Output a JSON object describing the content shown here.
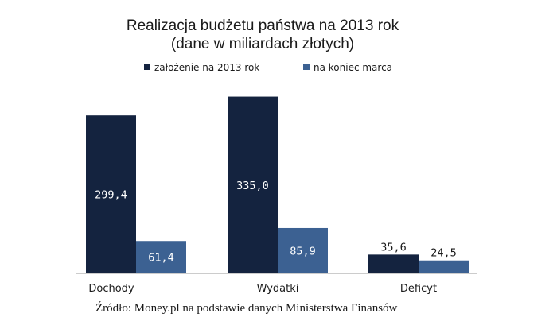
{
  "chart_data": {
    "type": "bar",
    "title": "Realizacja budżetu państwa na 2013 rok",
    "subtitle": "(dane w miliardach złotych)",
    "categories": [
      "Dochody",
      "Wydatki",
      "Deficyt"
    ],
    "series": [
      {
        "name": "założenie na 2013 rok",
        "color": "#14233f",
        "values": [
          299.4,
          335.0,
          35.6
        ],
        "labels": [
          "299,4",
          "335,0",
          "35,6"
        ]
      },
      {
        "name": "na koniec marca",
        "color": "#3c6192",
        "values": [
          61.4,
          85.9,
          24.5
        ],
        "labels": [
          "61,4",
          "85,9",
          "24,5"
        ]
      }
    ],
    "ylim": [
      0,
      350
    ],
    "grid": false,
    "legend_position": "top"
  },
  "source": "Źródło: Money.pl na podstawie danych Ministerstwa Finansów"
}
